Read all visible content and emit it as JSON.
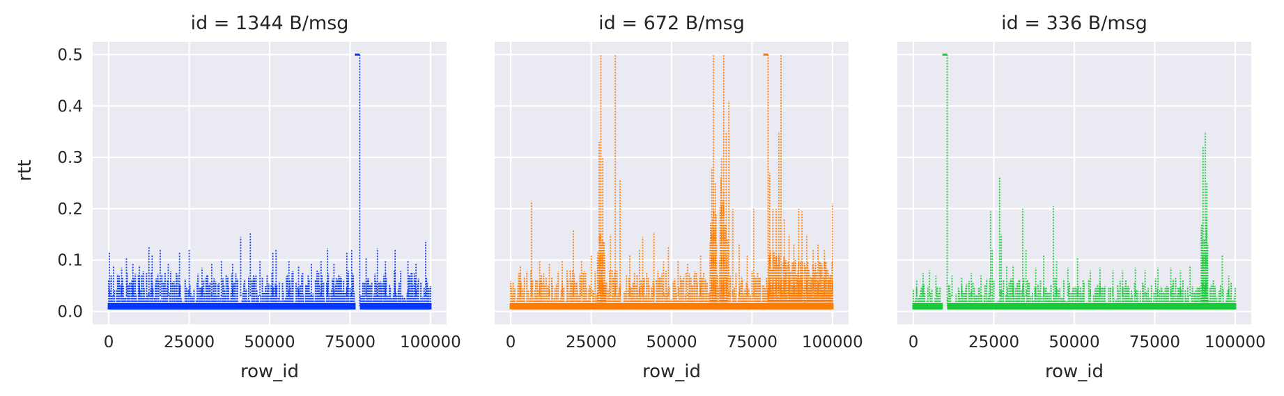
{
  "chart_data": {
    "type": "line",
    "layout": "facet-columns",
    "shared_y": true,
    "xlabel": "row_id",
    "ylabel": "rtt",
    "xlim": [
      -5000,
      105000
    ],
    "ylim": [
      -0.025,
      0.525
    ],
    "x_ticks": [
      0,
      25000,
      50000,
      75000,
      100000
    ],
    "y_ticks": [
      0.0,
      0.1,
      0.2,
      0.3,
      0.4,
      0.5
    ],
    "y_tick_labels": [
      "0.0",
      "0.1",
      "0.2",
      "0.3",
      "0.4",
      "0.5"
    ],
    "grid": true,
    "line_style": "dotted",
    "panels": [
      {
        "title": "id = 1344 B/msg",
        "color": "#0337fe",
        "baseline": {
          "x_range": [
            0,
            100000
          ],
          "min": 0.005,
          "max": 0.065
        },
        "peaks": [
          {
            "x": 200,
            "y": 0.115
          },
          {
            "x": 1500,
            "y": 0.09
          },
          {
            "x": 4000,
            "y": 0.085
          },
          {
            "x": 5500,
            "y": 0.105
          },
          {
            "x": 7500,
            "y": 0.095
          },
          {
            "x": 9500,
            "y": 0.09
          },
          {
            "x": 12500,
            "y": 0.127
          },
          {
            "x": 13500,
            "y": 0.11
          },
          {
            "x": 16000,
            "y": 0.12
          },
          {
            "x": 18500,
            "y": 0.095
          },
          {
            "x": 22000,
            "y": 0.115
          },
          {
            "x": 25000,
            "y": 0.122
          },
          {
            "x": 29000,
            "y": 0.085
          },
          {
            "x": 32000,
            "y": 0.095
          },
          {
            "x": 35000,
            "y": 0.1
          },
          {
            "x": 38500,
            "y": 0.095
          },
          {
            "x": 41000,
            "y": 0.145
          },
          {
            "x": 44000,
            "y": 0.153
          },
          {
            "x": 47000,
            "y": 0.1
          },
          {
            "x": 51000,
            "y": 0.115
          },
          {
            "x": 52000,
            "y": 0.12
          },
          {
            "x": 56000,
            "y": 0.1
          },
          {
            "x": 59000,
            "y": 0.09
          },
          {
            "x": 63000,
            "y": 0.095
          },
          {
            "x": 66000,
            "y": 0.1
          },
          {
            "x": 68000,
            "y": 0.123
          },
          {
            "x": 70000,
            "y": 0.095
          },
          {
            "x": 74000,
            "y": 0.115
          },
          {
            "x": 75500,
            "y": 0.12
          },
          {
            "x": 80000,
            "y": 0.105
          },
          {
            "x": 83500,
            "y": 0.123
          },
          {
            "x": 86000,
            "y": 0.1
          },
          {
            "x": 89000,
            "y": 0.12
          },
          {
            "x": 93000,
            "y": 0.1
          },
          {
            "x": 95500,
            "y": 0.095
          },
          {
            "x": 98500,
            "y": 0.135
          }
        ],
        "plateaus": [
          {
            "x_start": 76500,
            "x_end": 78000,
            "y": 0.5
          }
        ],
        "gaps": [
          {
            "x_start": 76500,
            "x_end": 78000
          }
        ]
      },
      {
        "title": "id = 672 B/msg",
        "color": "#ff7c00",
        "baseline": {
          "x_range": [
            0,
            100000
          ],
          "min": 0.005,
          "max": 0.065
        },
        "peaks": [
          {
            "x": 3000,
            "y": 0.09
          },
          {
            "x": 6500,
            "y": 0.215
          },
          {
            "x": 9000,
            "y": 0.1
          },
          {
            "x": 12000,
            "y": 0.095
          },
          {
            "x": 16000,
            "y": 0.1
          },
          {
            "x": 19500,
            "y": 0.16
          },
          {
            "x": 22000,
            "y": 0.1
          },
          {
            "x": 25000,
            "y": 0.11
          },
          {
            "x": 27500,
            "y": 0.33
          },
          {
            "x": 28000,
            "y": 0.5
          },
          {
            "x": 28600,
            "y": 0.3
          },
          {
            "x": 31000,
            "y": 0.15
          },
          {
            "x": 32500,
            "y": 0.5
          },
          {
            "x": 34000,
            "y": 0.255
          },
          {
            "x": 37000,
            "y": 0.11
          },
          {
            "x": 40000,
            "y": 0.12
          },
          {
            "x": 41000,
            "y": 0.145
          },
          {
            "x": 44500,
            "y": 0.155
          },
          {
            "x": 47500,
            "y": 0.1
          },
          {
            "x": 49000,
            "y": 0.125
          },
          {
            "x": 52000,
            "y": 0.1
          },
          {
            "x": 55000,
            "y": 0.095
          },
          {
            "x": 59000,
            "y": 0.11
          },
          {
            "x": 62500,
            "y": 0.28
          },
          {
            "x": 63000,
            "y": 0.5
          },
          {
            "x": 63600,
            "y": 0.25
          },
          {
            "x": 65500,
            "y": 0.3
          },
          {
            "x": 66200,
            "y": 0.5
          },
          {
            "x": 67000,
            "y": 0.35
          },
          {
            "x": 67800,
            "y": 0.41
          },
          {
            "x": 69000,
            "y": 0.2
          },
          {
            "x": 71000,
            "y": 0.13
          },
          {
            "x": 73500,
            "y": 0.11
          },
          {
            "x": 75500,
            "y": 0.2
          },
          {
            "x": 80500,
            "y": 0.27
          },
          {
            "x": 81500,
            "y": 0.2
          },
          {
            "x": 82500,
            "y": 0.2
          },
          {
            "x": 83300,
            "y": 0.35
          },
          {
            "x": 84000,
            "y": 0.5
          },
          {
            "x": 85000,
            "y": 0.18
          },
          {
            "x": 86500,
            "y": 0.15
          },
          {
            "x": 88000,
            "y": 0.13
          },
          {
            "x": 89500,
            "y": 0.2
          },
          {
            "x": 90500,
            "y": 0.195
          },
          {
            "x": 92000,
            "y": 0.15
          },
          {
            "x": 94000,
            "y": 0.12
          },
          {
            "x": 95500,
            "y": 0.13
          },
          {
            "x": 97500,
            "y": 0.12
          },
          {
            "x": 100000,
            "y": 0.21
          }
        ],
        "plateaus": [
          {
            "x_start": 78500,
            "x_end": 80000,
            "y": 0.5
          }
        ],
        "gaps": [],
        "dense_bands": [
          {
            "x_start": 27000,
            "x_end": 29500,
            "min": 0.03,
            "max": 0.16
          },
          {
            "x_start": 62000,
            "x_end": 64000,
            "min": 0.03,
            "max": 0.2
          },
          {
            "x_start": 65000,
            "x_end": 67500,
            "min": 0.05,
            "max": 0.28
          },
          {
            "x_start": 80000,
            "x_end": 85000,
            "min": 0.03,
            "max": 0.12
          },
          {
            "x_start": 85000,
            "x_end": 100000,
            "min": 0.02,
            "max": 0.1
          }
        ]
      },
      {
        "title": "id = 336 B/msg",
        "color": "#1ac938",
        "baseline": {
          "x_range": [
            0,
            100000
          ],
          "min": 0.005,
          "max": 0.05
        },
        "peaks": [
          {
            "x": 1000,
            "y": 0.06
          },
          {
            "x": 3000,
            "y": 0.075
          },
          {
            "x": 5000,
            "y": 0.08
          },
          {
            "x": 7000,
            "y": 0.07
          },
          {
            "x": 12000,
            "y": 0.07
          },
          {
            "x": 15000,
            "y": 0.065
          },
          {
            "x": 18000,
            "y": 0.075
          },
          {
            "x": 21000,
            "y": 0.07
          },
          {
            "x": 24000,
            "y": 0.195
          },
          {
            "x": 24500,
            "y": 0.12
          },
          {
            "x": 26800,
            "y": 0.26
          },
          {
            "x": 27300,
            "y": 0.15
          },
          {
            "x": 29000,
            "y": 0.09
          },
          {
            "x": 31000,
            "y": 0.09
          },
          {
            "x": 34000,
            "y": 0.2
          },
          {
            "x": 35000,
            "y": 0.12
          },
          {
            "x": 38000,
            "y": 0.085
          },
          {
            "x": 40500,
            "y": 0.11
          },
          {
            "x": 43500,
            "y": 0.205
          },
          {
            "x": 44500,
            "y": 0.1
          },
          {
            "x": 48000,
            "y": 0.085
          },
          {
            "x": 51000,
            "y": 0.105
          },
          {
            "x": 55000,
            "y": 0.08
          },
          {
            "x": 58000,
            "y": 0.085
          },
          {
            "x": 62000,
            "y": 0.08
          },
          {
            "x": 65000,
            "y": 0.08
          },
          {
            "x": 69000,
            "y": 0.085
          },
          {
            "x": 72000,
            "y": 0.08
          },
          {
            "x": 76000,
            "y": 0.085
          },
          {
            "x": 80000,
            "y": 0.085
          },
          {
            "x": 83000,
            "y": 0.08
          },
          {
            "x": 86000,
            "y": 0.09
          },
          {
            "x": 90000,
            "y": 0.32
          },
          {
            "x": 90700,
            "y": 0.35
          },
          {
            "x": 91200,
            "y": 0.25
          },
          {
            "x": 96000,
            "y": 0.11
          },
          {
            "x": 98000,
            "y": 0.07
          }
        ],
        "plateaus": [
          {
            "x_start": 9000,
            "x_end": 10500,
            "y": 0.5
          }
        ],
        "gaps": [
          {
            "x_start": 9000,
            "x_end": 10500
          }
        ],
        "dense_bands": [
          {
            "x_start": 89500,
            "x_end": 91500,
            "min": 0.03,
            "max": 0.2
          }
        ]
      }
    ]
  }
}
